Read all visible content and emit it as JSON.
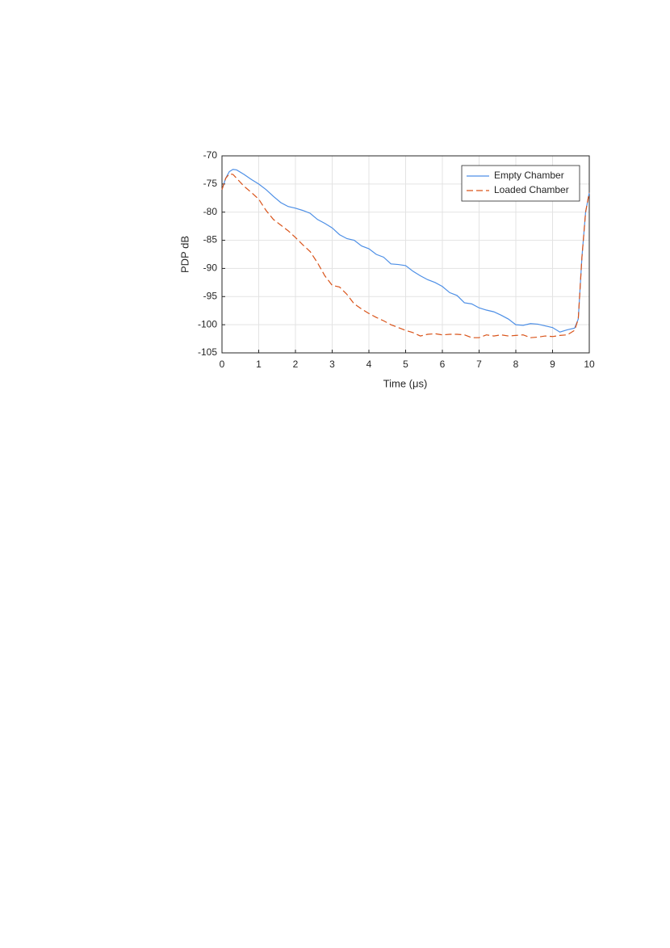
{
  "chart_data": {
    "type": "line",
    "xlabel": "Time (μs)",
    "ylabel": "PDP dB",
    "x": [
      0,
      0.1,
      0.2,
      0.3,
      0.4,
      0.6,
      0.8,
      1.0,
      1.2,
      1.4,
      1.6,
      1.8,
      2.0,
      2.2,
      2.4,
      2.6,
      2.8,
      3.0,
      3.2,
      3.4,
      3.6,
      3.8,
      4.0,
      4.2,
      4.4,
      4.6,
      4.8,
      5.0,
      5.2,
      5.4,
      5.6,
      5.8,
      6.0,
      6.2,
      6.4,
      6.6,
      6.8,
      7.0,
      7.2,
      7.4,
      7.6,
      7.8,
      8.0,
      8.2,
      8.4,
      8.6,
      8.8,
      9.0,
      9.2,
      9.4,
      9.6,
      9.7,
      9.8,
      9.9,
      10
    ],
    "series": [
      {
        "name": "Empty Chamber",
        "color": "#4d8fe6",
        "dash": "solid",
        "values": [
          -76,
          -74,
          -72.8,
          -72.4,
          -72.5,
          -73.3,
          -74.2,
          -75,
          -76,
          -77.2,
          -78.3,
          -79,
          -79.3,
          -79.7,
          -80.2,
          -81.3,
          -82,
          -82.8,
          -84,
          -84.7,
          -85,
          -86,
          -86.5,
          -87.5,
          -88,
          -89.2,
          -89.3,
          -89.5,
          -90.5,
          -91.3,
          -92,
          -92.5,
          -93.2,
          -94.3,
          -94.8,
          -96.1,
          -96.3,
          -97,
          -97.4,
          -97.7,
          -98.3,
          -99,
          -100,
          -100.1,
          -99.8,
          -99.9,
          -100.2,
          -100.5,
          -101.3,
          -100.9,
          -100.6,
          -99,
          -88,
          -80,
          -76.5
        ]
      },
      {
        "name": "Loaded Chamber",
        "color": "#d95319",
        "dash": "dashed",
        "values": [
          -76,
          -74,
          -73.2,
          -73.3,
          -74,
          -75.4,
          -76.5,
          -77.7,
          -79.7,
          -81.3,
          -82.3,
          -83.3,
          -84.5,
          -85.8,
          -87,
          -89,
          -91.3,
          -93,
          -93.3,
          -94.6,
          -96.3,
          -97.2,
          -98,
          -98.7,
          -99.3,
          -100,
          -100.5,
          -101,
          -101.4,
          -102,
          -101.7,
          -101.6,
          -101.8,
          -101.7,
          -101.7,
          -101.8,
          -102.3,
          -102.3,
          -101.8,
          -102,
          -101.8,
          -102,
          -101.9,
          -101.8,
          -102.3,
          -102.2,
          -102,
          -102.1,
          -101.9,
          -101.8,
          -101,
          -99,
          -88,
          -80,
          -76.5
        ]
      }
    ],
    "xlim": [
      0,
      10
    ],
    "xticks": [
      0,
      1,
      2,
      3,
      4,
      5,
      6,
      7,
      8,
      9,
      10
    ],
    "ylim": [
      -105,
      -70
    ],
    "yticks": [
      -105,
      -100,
      -95,
      -90,
      -85,
      -80,
      -75,
      -70
    ],
    "grid": true,
    "legend": "northeast"
  }
}
